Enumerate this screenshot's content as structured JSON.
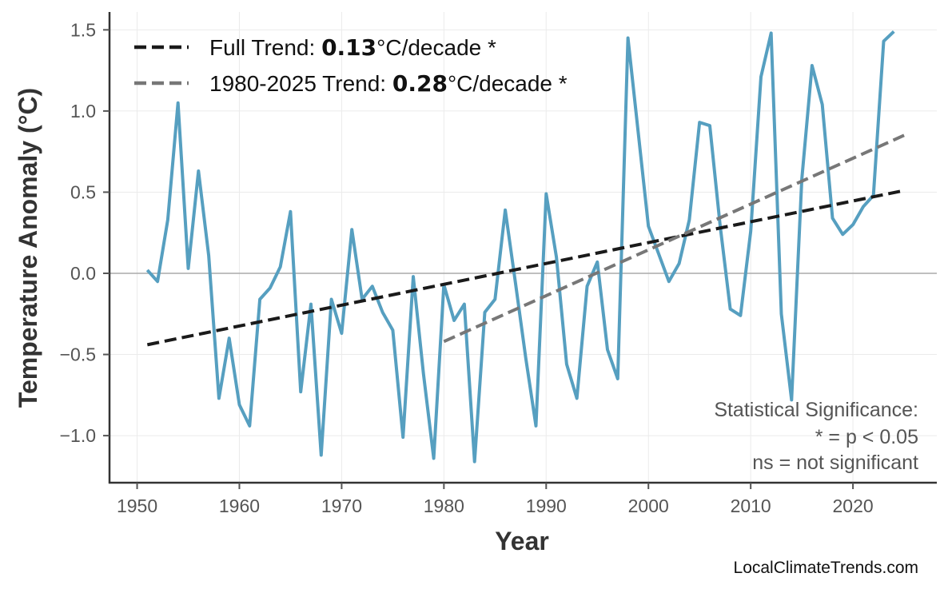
{
  "chart_data": {
    "type": "line",
    "title": "",
    "xlabel": "Year",
    "ylabel": "Temperature Anomaly (°C)",
    "xlim": [
      1947.3,
      2028.2
    ],
    "ylim": [
      -1.29,
      1.61
    ],
    "xticks": [
      1950,
      1960,
      1970,
      1980,
      1990,
      2000,
      2010,
      2020
    ],
    "yticks": [
      -1.0,
      -0.5,
      0.0,
      0.5,
      1.0,
      1.5
    ],
    "ytick_labels": [
      "−1.0",
      "−0.5",
      "0.0",
      "0.5",
      "1.0",
      "1.5"
    ],
    "grid": true,
    "zero_line": true,
    "colors": {
      "series": "#569fc0",
      "full_trend": "#1a1a1a",
      "recent_trend": "#777777"
    },
    "series": [
      {
        "x": [
          1951,
          1952,
          1953,
          1954,
          1955,
          1956,
          1957,
          1958,
          1959,
          1960,
          1961,
          1962,
          1963,
          1964,
          1965,
          1966,
          1967,
          1968,
          1969,
          1970,
          1971,
          1972,
          1973,
          1974,
          1975,
          1976,
          1977,
          1978,
          1979,
          1980,
          1981,
          1982,
          1983,
          1984,
          1985,
          1986,
          1987,
          1988,
          1989,
          1990,
          1991,
          1992,
          1993,
          1994,
          1995,
          1996,
          1997,
          1998,
          1999,
          2000,
          2001,
          2002,
          2003,
          2004,
          2005,
          2006,
          2007,
          2008,
          2009,
          2010,
          2011,
          2012,
          2013,
          2014,
          2015,
          2016,
          2017,
          2018,
          2019,
          2020,
          2021,
          2022,
          2023,
          2024
        ],
        "values": [
          0.02,
          -0.05,
          0.33,
          1.05,
          0.03,
          0.63,
          0.11,
          -0.77,
          -0.4,
          -0.81,
          -0.94,
          -0.16,
          -0.09,
          0.04,
          0.38,
          -0.73,
          -0.19,
          -1.12,
          -0.16,
          -0.37,
          0.27,
          -0.16,
          -0.08,
          -0.24,
          -0.35,
          -1.01,
          -0.02,
          -0.62,
          -1.14,
          -0.07,
          -0.29,
          -0.19,
          -1.16,
          -0.24,
          -0.16,
          0.39,
          -0.06,
          -0.52,
          -0.94,
          0.49,
          0.1,
          -0.56,
          -0.77,
          -0.08,
          0.07,
          -0.47,
          -0.65,
          1.45,
          0.87,
          0.29,
          0.12,
          -0.05,
          0.06,
          0.33,
          0.93,
          0.91,
          0.3,
          -0.22,
          -0.26,
          0.26,
          1.21,
          1.48,
          -0.25,
          -0.78,
          0.58,
          1.28,
          1.04,
          0.34,
          0.24,
          0.3,
          0.41,
          0.48,
          1.43,
          1.49
        ]
      }
    ],
    "trends": [
      {
        "name": "Full Trend",
        "x": [
          1951,
          2025
        ],
        "y": [
          -0.44,
          0.51
        ],
        "style": "dashed",
        "color": "#1a1a1a"
      },
      {
        "name": "1980-2025 Trend",
        "x": [
          1980,
          2025
        ],
        "y": [
          -0.42,
          0.85
        ],
        "style": "dashed",
        "color": "#777777"
      }
    ],
    "legend": {
      "placement": "top-left",
      "entries": [
        {
          "prefix": "Full Trend: ",
          "value": "0.13",
          "suffix": "°C/decade *"
        },
        {
          "prefix": "1980-2025 Trend: ",
          "value": "0.28",
          "suffix": "°C/decade *"
        }
      ]
    },
    "annotations": {
      "significance": [
        "Statistical Significance:",
        "* = p < 0.05",
        "ns = not significant"
      ],
      "placement": "bottom-right"
    },
    "watermark": "LocalClimateTrends.com"
  }
}
